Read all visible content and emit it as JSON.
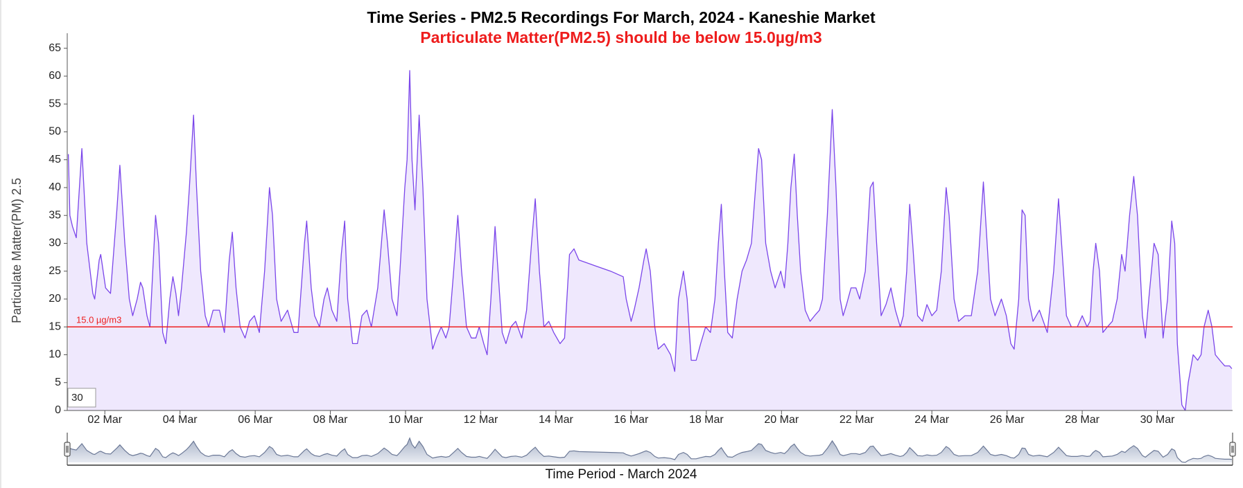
{
  "chart_data": {
    "type": "area",
    "title": "Time Series - PM2.5 Recordings For March, 2024 - Kaneshie Market",
    "subtitle": "Particulate Matter(PM2.5) should be below 15.0µg/m3",
    "y_label": "Particulate Matter(PM) 2.5",
    "x_label": "Time Period - March 2024",
    "zoom_input": "30",
    "threshold": {
      "value": 15,
      "label": "15.0 µg/m3",
      "color": "#ee2020"
    },
    "xlim": [
      1,
      32
    ],
    "ylim": [
      0,
      67.7
    ],
    "xticks": [
      {
        "value": 2,
        "label": "02 Mar"
      },
      {
        "value": 4,
        "label": "04 Mar"
      },
      {
        "value": 6,
        "label": "06 Mar"
      },
      {
        "value": 8,
        "label": "08 Mar"
      },
      {
        "value": 10,
        "label": "10 Mar"
      },
      {
        "value": 12,
        "label": "12 Mar"
      },
      {
        "value": 14,
        "label": "14 Mar"
      },
      {
        "value": 16,
        "label": "16 Mar"
      },
      {
        "value": 18,
        "label": "18 Mar"
      },
      {
        "value": 20,
        "label": "20 Mar"
      },
      {
        "value": 22,
        "label": "22 Mar"
      },
      {
        "value": 24,
        "label": "24 Mar"
      },
      {
        "value": 26,
        "label": "26 Mar"
      },
      {
        "value": 28,
        "label": "28 Mar"
      },
      {
        "value": 30,
        "label": "30 Mar"
      }
    ],
    "yticks": [
      0,
      5,
      10,
      15,
      20,
      25,
      30,
      35,
      40,
      45,
      50,
      55,
      60,
      65
    ],
    "color": "#7a45ea",
    "fill": "#efe8fd",
    "x": [
      1.03,
      1.07,
      1.14,
      1.24,
      1.39,
      1.52,
      1.68,
      1.73,
      1.85,
      1.89,
      2.02,
      2.15,
      2.32,
      2.4,
      2.53,
      2.65,
      2.74,
      2.86,
      2.95,
      3.01,
      3.12,
      3.2,
      3.35,
      3.43,
      3.54,
      3.62,
      3.73,
      3.81,
      3.89,
      3.96,
      4.04,
      4.17,
      4.25,
      4.36,
      4.44,
      4.55,
      4.67,
      4.76,
      4.88,
      5.05,
      5.18,
      5.31,
      5.39,
      5.49,
      5.6,
      5.73,
      5.85,
      5.98,
      6.11,
      6.25,
      6.38,
      6.46,
      6.57,
      6.69,
      6.86,
      7.03,
      7.14,
      7.31,
      7.37,
      7.49,
      7.58,
      7.71,
      7.83,
      7.92,
      8.04,
      8.17,
      8.29,
      8.38,
      8.46,
      8.59,
      8.72,
      8.84,
      8.97,
      9.09,
      9.26,
      9.43,
      9.52,
      9.64,
      9.77,
      9.85,
      9.98,
      10.04,
      10.11,
      10.17,
      10.25,
      10.36,
      10.46,
      10.57,
      10.72,
      10.82,
      10.95,
      11.07,
      11.16,
      11.28,
      11.39,
      11.49,
      11.62,
      11.75,
      11.87,
      11.96,
      12.08,
      12.17,
      12.27,
      12.38,
      12.46,
      12.57,
      12.67,
      12.8,
      12.93,
      13.09,
      13.22,
      13.35,
      13.45,
      13.56,
      13.68,
      13.81,
      13.94,
      14.11,
      14.23,
      14.36,
      14.48,
      14.61,
      15.03,
      15.45,
      15.79,
      15.87,
      16.0,
      16.08,
      16.21,
      16.34,
      16.4,
      16.51,
      16.63,
      16.72,
      16.88,
      17.05,
      17.16,
      17.26,
      17.39,
      17.49,
      17.6,
      17.73,
      17.85,
      17.98,
      18.11,
      18.23,
      18.32,
      18.4,
      18.48,
      18.57,
      18.69,
      18.82,
      18.95,
      19.07,
      19.2,
      19.31,
      19.39,
      19.47,
      19.58,
      19.71,
      19.83,
      19.98,
      20.08,
      20.17,
      20.25,
      20.34,
      20.42,
      20.51,
      20.63,
      20.76,
      20.88,
      21.01,
      21.09,
      21.22,
      21.35,
      21.45,
      21.56,
      21.64,
      21.73,
      21.85,
      21.98,
      22.08,
      22.23,
      22.36,
      22.44,
      22.53,
      22.65,
      22.78,
      22.91,
      23.03,
      23.16,
      23.24,
      23.33,
      23.41,
      23.49,
      23.62,
      23.75,
      23.87,
      24.0,
      24.13,
      24.25,
      24.38,
      24.46,
      24.59,
      24.71,
      24.88,
      25.05,
      25.22,
      25.37,
      25.47,
      25.56,
      25.68,
      25.85,
      25.98,
      26.1,
      26.19,
      26.31,
      26.4,
      26.48,
      26.57,
      26.69,
      26.86,
      27.07,
      27.24,
      27.37,
      27.45,
      27.58,
      27.71,
      27.87,
      28.0,
      28.13,
      28.21,
      28.29,
      28.36,
      28.46,
      28.55,
      28.67,
      28.8,
      28.93,
      29.05,
      29.14,
      29.26,
      29.37,
      29.47,
      29.6,
      29.68,
      29.77,
      29.91,
      30.02,
      30.15,
      30.27,
      30.38,
      30.46,
      30.53,
      30.65,
      30.74,
      30.82,
      30.95,
      31.07,
      31.16,
      31.24,
      31.35,
      31.45,
      31.54,
      31.66,
      31.79,
      31.92,
      31.98
    ],
    "values": [
      46,
      35,
      33,
      31,
      47,
      30,
      21,
      20,
      27,
      28,
      22,
      21,
      36,
      44,
      30,
      20,
      17,
      20,
      23,
      22,
      17,
      15,
      35,
      30,
      14,
      12,
      20,
      24,
      21,
      17,
      22,
      32,
      40,
      53,
      40,
      25,
      17,
      15,
      18,
      18,
      14,
      27,
      32,
      22,
      15,
      13,
      16,
      17,
      14,
      25,
      40,
      35,
      20,
      16,
      18,
      14,
      14,
      30,
      34,
      22,
      17,
      15,
      20,
      22,
      18,
      16,
      28,
      34,
      20,
      12,
      12,
      17,
      18,
      15,
      22,
      36,
      30,
      20,
      17,
      25,
      40,
      45,
      61,
      45,
      36,
      53,
      40,
      20,
      11,
      13,
      15,
      13,
      15,
      25,
      35,
      25,
      15,
      13,
      13,
      15,
      12,
      10,
      20,
      33,
      25,
      14,
      12,
      15,
      16,
      13,
      18,
      30,
      38,
      25,
      15,
      16,
      14,
      12,
      13,
      28,
      29,
      27,
      26,
      25,
      24,
      20,
      16,
      18,
      22,
      27,
      29,
      25,
      15,
      11,
      12,
      10,
      7,
      20,
      25,
      20,
      9,
      9,
      12,
      15,
      14,
      20,
      30,
      37,
      25,
      14,
      13,
      20,
      25,
      27,
      30,
      40,
      47,
      45,
      30,
      25,
      22,
      25,
      22,
      30,
      40,
      46,
      35,
      25,
      18,
      16,
      17,
      18,
      20,
      35,
      54,
      40,
      20,
      17,
      19,
      22,
      22,
      20,
      25,
      40,
      41,
      30,
      17,
      19,
      22,
      18,
      15,
      17,
      25,
      37,
      30,
      17,
      16,
      19,
      17,
      18,
      25,
      40,
      35,
      20,
      16,
      17,
      17,
      25,
      41,
      30,
      20,
      17,
      20,
      17,
      12,
      11,
      20,
      36,
      35,
      20,
      16,
      18,
      14,
      25,
      38,
      30,
      17,
      15,
      15,
      17,
      15,
      16,
      25,
      30,
      25,
      14,
      15,
      16,
      20,
      28,
      25,
      35,
      42,
      35,
      17,
      13,
      20,
      30,
      28,
      13,
      20,
      34,
      30,
      12,
      1,
      0,
      5,
      10,
      9,
      10,
      15,
      18,
      15,
      10,
      9,
      8,
      8,
      7.5
    ]
  }
}
